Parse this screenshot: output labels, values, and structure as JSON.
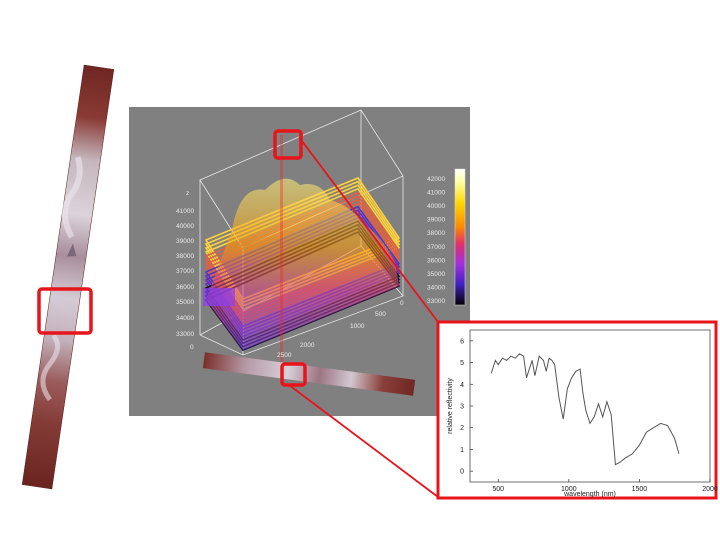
{
  "cube": {
    "z_axis_label": "z",
    "z_ticks": [
      "41000",
      "40000",
      "39000",
      "38000",
      "37000",
      "36000",
      "35000",
      "34000",
      "33000"
    ],
    "front_ticks": [
      "0",
      "2500",
      "2000"
    ],
    "depth_ticks": [
      "1000",
      "500",
      "0"
    ],
    "colorbar_ticks": [
      "42000",
      "41000",
      "40000",
      "39000",
      "38000",
      "37000",
      "36000",
      "35000",
      "34000",
      "33000"
    ]
  },
  "spectrum": {
    "xlabel": "wavelength (nm)",
    "ylabel": "relative reflectivity",
    "x_ticks": [
      500,
      1000,
      1500,
      2000
    ],
    "y_ticks": [
      0,
      1,
      2,
      3,
      4,
      5,
      6
    ],
    "xlim": [
      300,
      2000
    ],
    "ylim": [
      -0.5,
      6.5
    ],
    "x": [
      450,
      480,
      500,
      530,
      560,
      590,
      620,
      650,
      680,
      700,
      720,
      740,
      760,
      790,
      820,
      840,
      860,
      880,
      900,
      930,
      960,
      990,
      1020,
      1050,
      1080,
      1100,
      1120,
      1150,
      1180,
      1210,
      1240,
      1270,
      1300,
      1330,
      1360,
      1400,
      1450,
      1500,
      1550,
      1600,
      1650,
      1700,
      1750,
      1780
    ],
    "y": [
      4.5,
      5.1,
      4.9,
      5.2,
      5.1,
      5.3,
      5.2,
      5.4,
      5.3,
      4.3,
      4.7,
      5.1,
      4.4,
      5.3,
      5.1,
      4.6,
      5.2,
      5.1,
      4.9,
      3.4,
      2.4,
      3.8,
      4.3,
      4.6,
      4.7,
      3.6,
      2.8,
      2.2,
      2.5,
      3.1,
      2.5,
      3.2,
      2.6,
      0.3,
      0.4,
      0.6,
      0.8,
      1.2,
      1.8,
      2.0,
      2.2,
      2.1,
      1.5,
      0.8
    ],
    "line_color": "#555555",
    "grid": false
  },
  "colors": {
    "highlight": "#e8141c",
    "cube_background": "#808080"
  }
}
